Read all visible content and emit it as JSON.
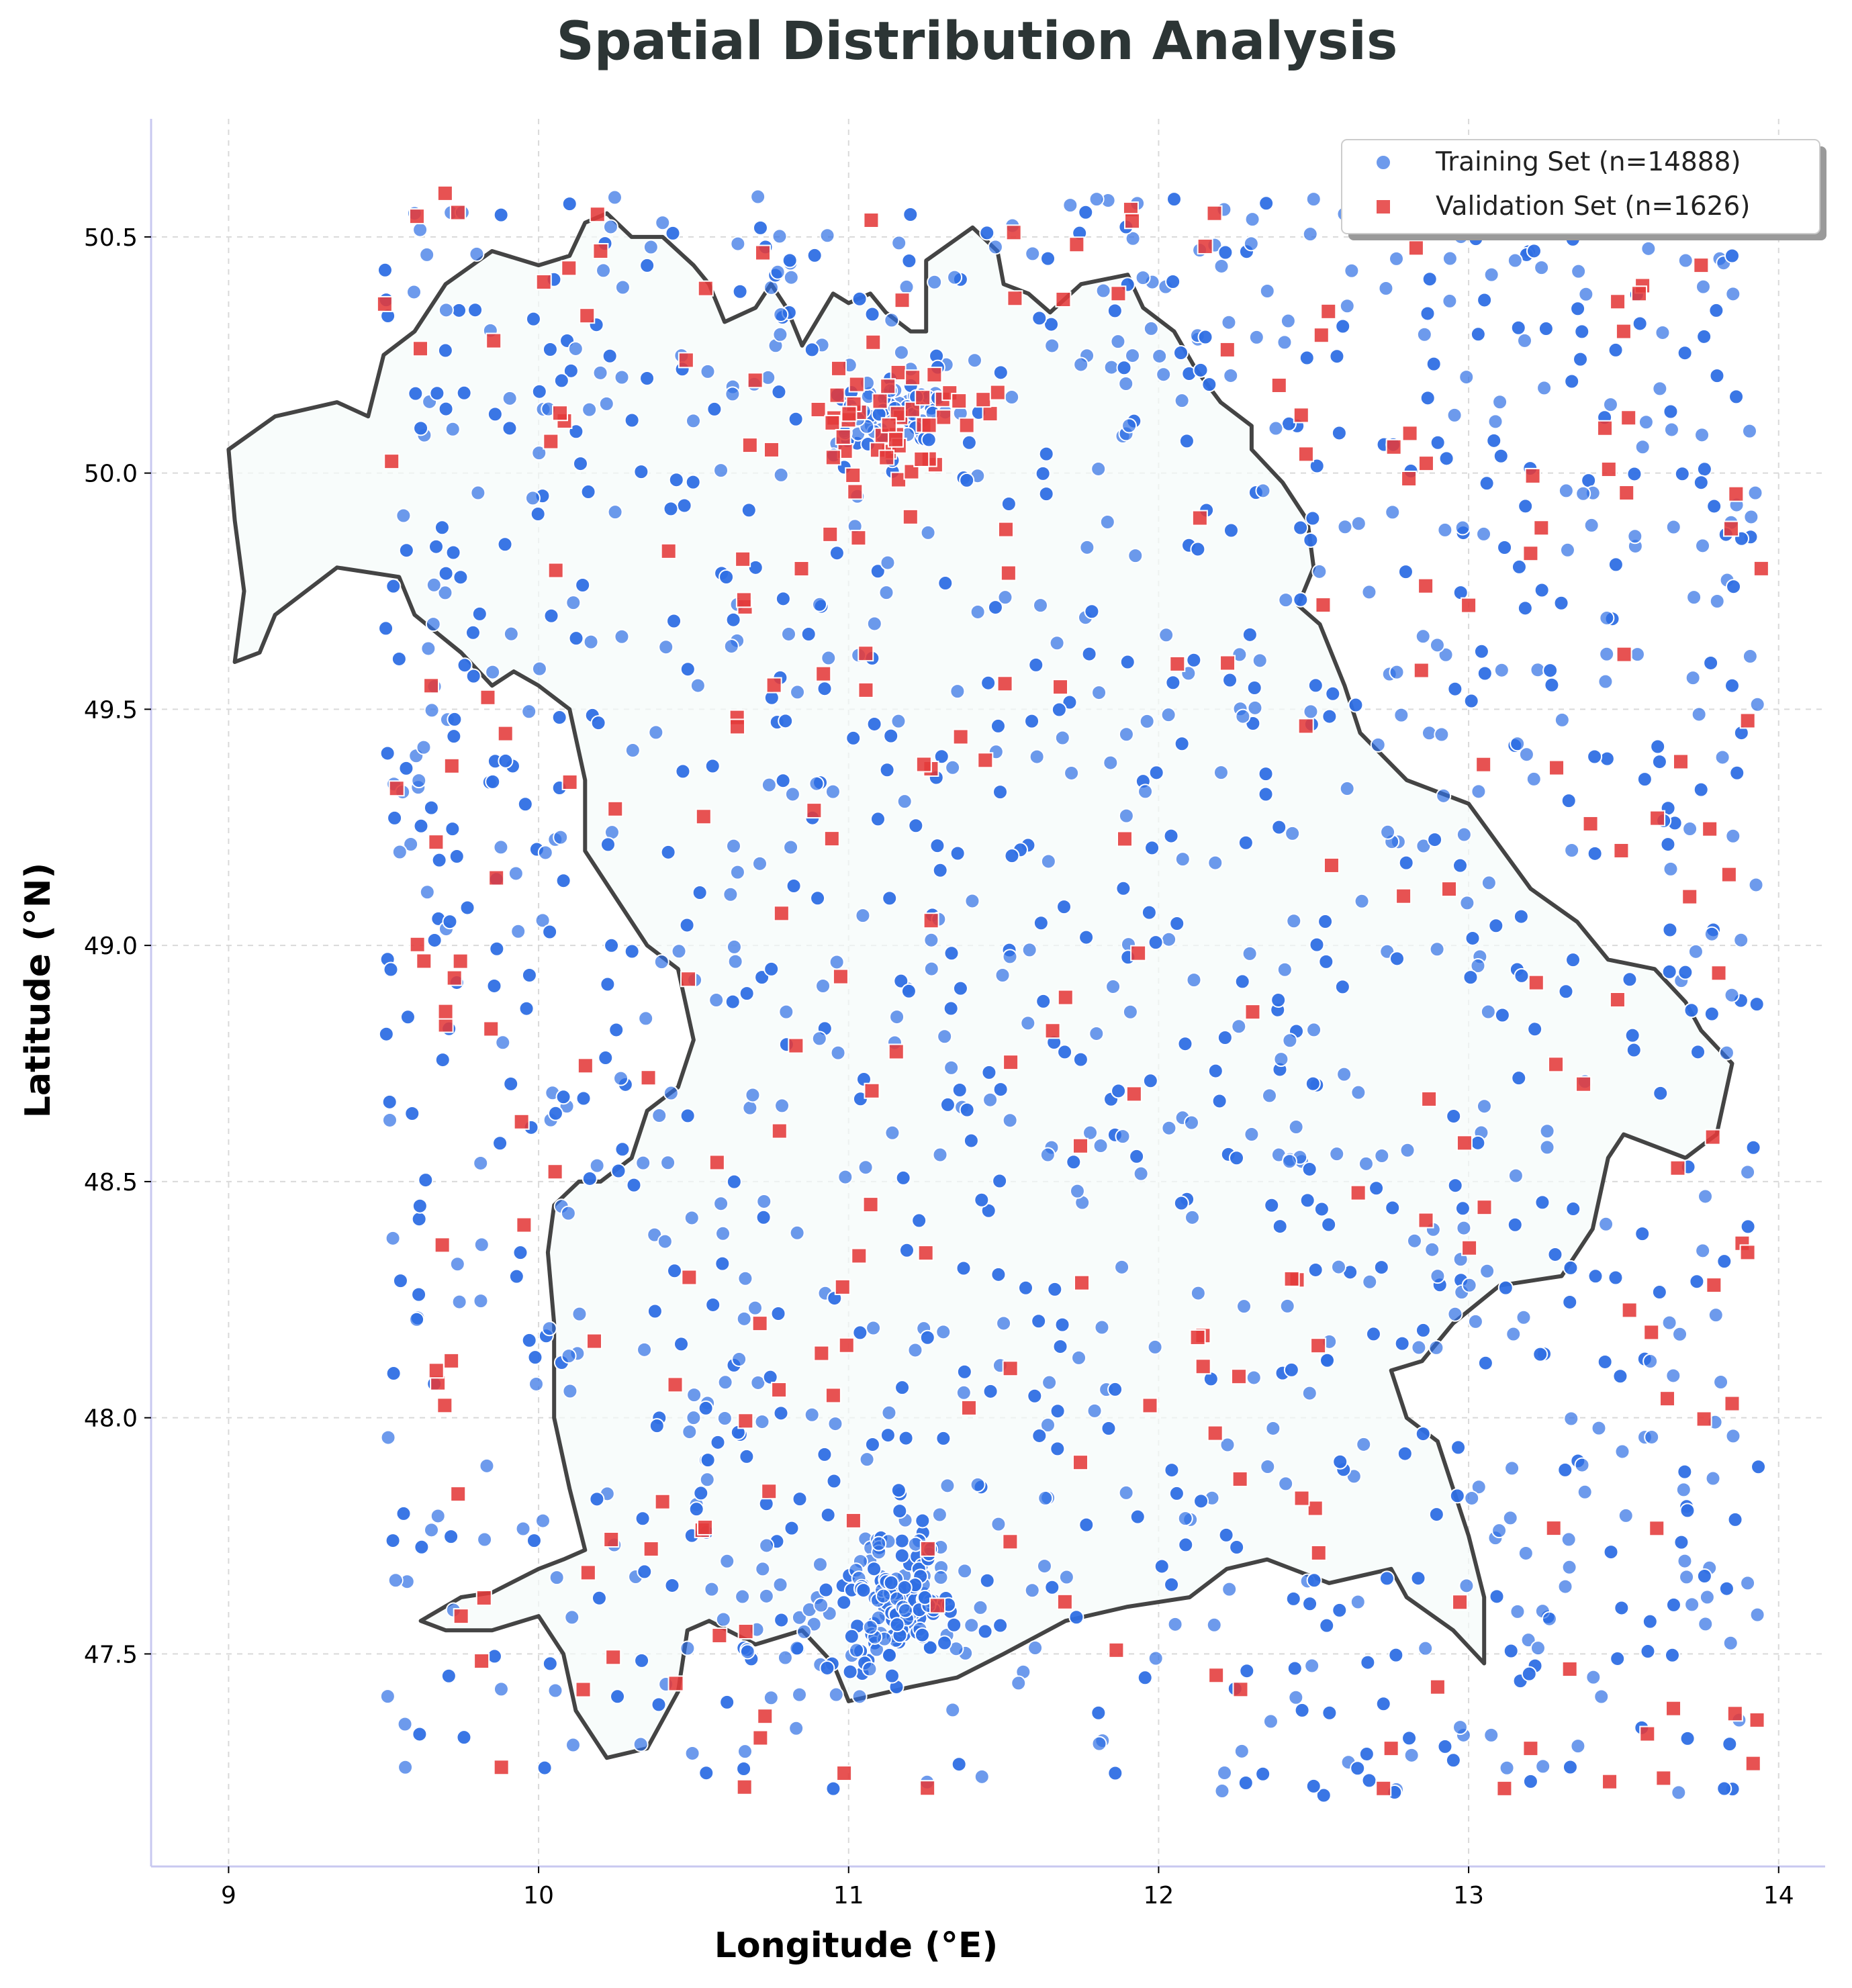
{
  "chart_data": {
    "type": "scatter",
    "title": "Spatial Distribution Analysis",
    "xlabel": "Longitude (°E)",
    "ylabel": "Latitude (°N)",
    "xlim": [
      8.75,
      14.15
    ],
    "ylim": [
      47.05,
      50.75
    ],
    "xticks": [
      9,
      10,
      11,
      12,
      13,
      14
    ],
    "yticks": [
      47.5,
      48.0,
      48.5,
      49.0,
      49.5,
      50.0,
      50.5
    ],
    "xtick_labels": [
      "9",
      "10",
      "11",
      "12",
      "13",
      "14"
    ],
    "ytick_labels": [
      "47.5",
      "48.0",
      "48.5",
      "49.0",
      "49.5",
      "50.0",
      "50.5"
    ],
    "grid": true,
    "legend_position": "top-right",
    "series": [
      {
        "name": "Training Set (n=14888)",
        "marker": "circle",
        "color": "#2f6fe4",
        "count_shown": 14888,
        "clusters": [
          {
            "center": [
              11.15,
              47.62
            ],
            "spread": [
              0.1,
              0.07
            ],
            "n": 140
          },
          {
            "center": [
              11.15,
              50.12
            ],
            "spread": [
              0.12,
              0.04
            ],
            "n": 60
          }
        ],
        "sample_points": [
          [
            9.6,
            50.55
          ],
          [
            10.1,
            50.57
          ],
          [
            10.4,
            50.53
          ],
          [
            11.8,
            50.58
          ],
          [
            12.05,
            50.58
          ],
          [
            12.5,
            50.58
          ],
          [
            13.7,
            50.45
          ],
          [
            13.85,
            50.46
          ],
          [
            13.15,
            50.45
          ],
          [
            9.52,
            48.63
          ],
          [
            9.53,
            48.38
          ],
          [
            9.53,
            47.74
          ],
          [
            9.57,
            47.26
          ],
          [
            11.43,
            47.24
          ],
          [
            12.5,
            47.22
          ],
          [
            13.2,
            47.23
          ],
          [
            13.9,
            47.65
          ],
          [
            13.9,
            48.52
          ],
          [
            13.88,
            49.45
          ],
          [
            13.83,
            49.87
          ],
          [
            13.85,
            49.55
          ],
          [
            13.75,
            49.98
          ],
          [
            10.7,
            49.8
          ],
          [
            11.3,
            49.4
          ],
          [
            12.3,
            48.6
          ],
          [
            11.5,
            48.2
          ],
          [
            10.5,
            48.0
          ],
          [
            12.9,
            48.3
          ],
          [
            10.9,
            49.1
          ],
          [
            11.9,
            49.6
          ]
        ]
      },
      {
        "name": "Validation Set (n=1626)",
        "marker": "square",
        "color": "#e43a3a",
        "count_shown": 1626,
        "clusters": [
          {
            "center": [
              11.15,
              50.12
            ],
            "spread": [
              0.15,
              0.06
            ],
            "n": 45
          }
        ],
        "sample_points": [
          [
            12.18,
            50.55
          ],
          [
            12.15,
            50.48
          ],
          [
            9.88,
            47.26
          ],
          [
            13.75,
            50.44
          ],
          [
            13.55,
            50.38
          ],
          [
            13.5,
            50.3
          ],
          [
            12.75,
            47.3
          ],
          [
            13.2,
            47.3
          ],
          [
            13.9,
            48.35
          ],
          [
            13.85,
            48.03
          ],
          [
            13.84,
            49.15
          ],
          [
            9.7,
            48.86
          ],
          [
            9.72,
            49.38
          ],
          [
            9.75,
            47.58
          ],
          [
            10.2,
            50.47
          ],
          [
            11.87,
            50.38
          ],
          [
            13.0,
            49.72
          ],
          [
            13.2,
            49.83
          ],
          [
            12.9,
            47.43
          ],
          [
            9.67,
            48.1
          ]
        ]
      }
    ],
    "outline_lonlat": [
      [
        9.0,
        50.05
      ],
      [
        9.15,
        50.12
      ],
      [
        9.35,
        50.15
      ],
      [
        9.45,
        50.12
      ],
      [
        9.5,
        50.25
      ],
      [
        9.6,
        50.3
      ],
      [
        9.7,
        50.4
      ],
      [
        9.85,
        50.47
      ],
      [
        10.0,
        50.44
      ],
      [
        10.1,
        50.46
      ],
      [
        10.15,
        50.53
      ],
      [
        10.22,
        50.55
      ],
      [
        10.3,
        50.5
      ],
      [
        10.4,
        50.5
      ],
      [
        10.5,
        50.44
      ],
      [
        10.55,
        50.4
      ],
      [
        10.6,
        50.32
      ],
      [
        10.7,
        50.35
      ],
      [
        10.75,
        50.4
      ],
      [
        10.8,
        50.35
      ],
      [
        10.85,
        50.27
      ],
      [
        10.95,
        50.38
      ],
      [
        11.0,
        50.36
      ],
      [
        11.07,
        50.38
      ],
      [
        11.12,
        50.34
      ],
      [
        11.2,
        50.3
      ],
      [
        11.25,
        50.3
      ],
      [
        11.25,
        50.45
      ],
      [
        11.4,
        50.52
      ],
      [
        11.48,
        50.47
      ],
      [
        11.5,
        50.4
      ],
      [
        11.58,
        50.38
      ],
      [
        11.65,
        50.34
      ],
      [
        11.75,
        50.4
      ],
      [
        11.9,
        50.42
      ],
      [
        11.95,
        50.35
      ],
      [
        12.05,
        50.3
      ],
      [
        12.12,
        50.22
      ],
      [
        12.2,
        50.15
      ],
      [
        12.3,
        50.1
      ],
      [
        12.3,
        50.05
      ],
      [
        12.4,
        49.98
      ],
      [
        12.48,
        49.9
      ],
      [
        12.5,
        49.8
      ],
      [
        12.45,
        49.72
      ],
      [
        12.52,
        49.68
      ],
      [
        12.6,
        49.55
      ],
      [
        12.65,
        49.45
      ],
      [
        12.8,
        49.35
      ],
      [
        13.0,
        49.3
      ],
      [
        13.2,
        49.12
      ],
      [
        13.35,
        49.05
      ],
      [
        13.45,
        48.97
      ],
      [
        13.6,
        48.95
      ],
      [
        13.7,
        48.88
      ],
      [
        13.75,
        48.82
      ],
      [
        13.85,
        48.75
      ],
      [
        13.8,
        48.6
      ],
      [
        13.7,
        48.55
      ],
      [
        13.5,
        48.6
      ],
      [
        13.45,
        48.55
      ],
      [
        13.4,
        48.4
      ],
      [
        13.3,
        48.3
      ],
      [
        13.1,
        48.28
      ],
      [
        12.95,
        48.2
      ],
      [
        12.85,
        48.12
      ],
      [
        12.75,
        48.1
      ],
      [
        12.8,
        48.0
      ],
      [
        12.9,
        47.95
      ],
      [
        12.95,
        47.85
      ],
      [
        13.0,
        47.75
      ],
      [
        13.05,
        47.62
      ],
      [
        13.05,
        47.48
      ],
      [
        12.95,
        47.55
      ],
      [
        12.8,
        47.62
      ],
      [
        12.75,
        47.68
      ],
      [
        12.55,
        47.65
      ],
      [
        12.35,
        47.7
      ],
      [
        12.22,
        47.68
      ],
      [
        12.1,
        47.62
      ],
      [
        11.9,
        47.6
      ],
      [
        11.7,
        47.57
      ],
      [
        11.5,
        47.5
      ],
      [
        11.35,
        47.45
      ],
      [
        11.2,
        47.43
      ],
      [
        11.0,
        47.4
      ],
      [
        10.95,
        47.48
      ],
      [
        10.85,
        47.55
      ],
      [
        10.7,
        47.52
      ],
      [
        10.55,
        47.57
      ],
      [
        10.48,
        47.55
      ],
      [
        10.45,
        47.42
      ],
      [
        10.35,
        47.3
      ],
      [
        10.22,
        47.28
      ],
      [
        10.12,
        47.38
      ],
      [
        10.08,
        47.5
      ],
      [
        10.0,
        47.58
      ],
      [
        9.85,
        47.55
      ],
      [
        9.7,
        47.55
      ],
      [
        9.62,
        47.57
      ],
      [
        9.75,
        47.62
      ],
      [
        9.85,
        47.63
      ],
      [
        10.0,
        47.68
      ],
      [
        10.08,
        47.7
      ],
      [
        10.15,
        47.72
      ],
      [
        10.1,
        47.85
      ],
      [
        10.05,
        48.0
      ],
      [
        10.05,
        48.2
      ],
      [
        10.03,
        48.35
      ],
      [
        10.05,
        48.45
      ],
      [
        10.13,
        48.5
      ],
      [
        10.2,
        48.5
      ],
      [
        10.3,
        48.55
      ],
      [
        10.35,
        48.65
      ],
      [
        10.45,
        48.7
      ],
      [
        10.5,
        48.8
      ],
      [
        10.45,
        48.95
      ],
      [
        10.35,
        49.0
      ],
      [
        10.25,
        49.1
      ],
      [
        10.15,
        49.2
      ],
      [
        10.15,
        49.35
      ],
      [
        10.1,
        49.5
      ],
      [
        10.0,
        49.55
      ],
      [
        9.92,
        49.58
      ],
      [
        9.85,
        49.55
      ],
      [
        9.75,
        49.62
      ],
      [
        9.6,
        49.7
      ],
      [
        9.55,
        49.78
      ],
      [
        9.35,
        49.8
      ],
      [
        9.25,
        49.75
      ],
      [
        9.15,
        49.7
      ],
      [
        9.1,
        49.62
      ],
      [
        9.02,
        49.6
      ],
      [
        9.05,
        49.75
      ],
      [
        9.02,
        49.9
      ],
      [
        9.0,
        50.05
      ]
    ]
  }
}
